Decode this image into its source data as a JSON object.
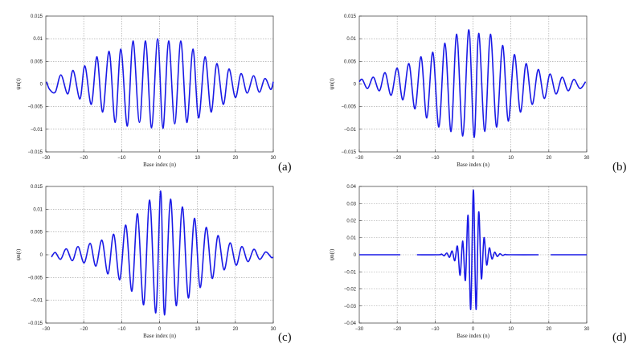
{
  "chart_data": [
    {
      "type": "line",
      "panel_label": "(a)",
      "xlabel": "Base   index   (n)",
      "ylabel": "ψn(t)",
      "xlim": [
        -30,
        30
      ],
      "ylim": [
        -0.015,
        0.015
      ],
      "xticks": [
        "−30",
        "−20",
        "−10",
        "0",
        "10",
        "20",
        "30"
      ],
      "yticks": [
        "−0.015",
        "−0.01",
        "−0.005",
        "0",
        "0.005",
        "0.01",
        "0.015"
      ],
      "grid": true,
      "series": [
        {
          "color": "#1a1ae6",
          "x": [
            -29.8,
            -29.0,
            -27.5,
            -26.0,
            -24.2,
            -22.8,
            -21.0,
            -19.7,
            -18.0,
            -16.5,
            -15.0,
            -13.3,
            -11.7,
            -10.2,
            -8.5,
            -7.0,
            -5.3,
            -3.7,
            -2.1,
            -0.5,
            0.9,
            2.4,
            4.0,
            5.6,
            7.2,
            8.8,
            10.3,
            12.0,
            13.6,
            15.1,
            16.8,
            18.3,
            20.0,
            21.5,
            23.1,
            24.8,
            26.3,
            27.8,
            29.3,
            30.0
          ],
          "y": [
            0.0005,
            -0.0012,
            -0.0018,
            0.002,
            -0.0022,
            0.003,
            -0.0033,
            0.004,
            -0.0045,
            0.006,
            -0.0062,
            0.0072,
            -0.0085,
            0.0077,
            -0.0093,
            0.0095,
            -0.0085,
            0.0095,
            -0.0097,
            0.01,
            -0.0098,
            0.0095,
            -0.0088,
            0.0095,
            -0.0085,
            0.0077,
            -0.0075,
            0.006,
            -0.0062,
            0.0045,
            -0.0045,
            0.0033,
            -0.003,
            0.0023,
            -0.002,
            0.0018,
            -0.0018,
            0.0012,
            -0.0012,
            0.0005
          ]
        }
      ]
    },
    {
      "type": "line",
      "panel_label": "(b)",
      "xlabel": "Base   index   (n)",
      "ylabel": "ψn(t)",
      "xlim": [
        -30,
        30
      ],
      "ylim": [
        -0.015,
        0.015
      ],
      "xticks": [
        "−30",
        "−20",
        "−10",
        "0",
        "10",
        "20",
        "30"
      ],
      "yticks": [
        "−0.015",
        "−0.01",
        "−0.005",
        "0",
        "0.005",
        "0.01",
        "0.015"
      ],
      "grid": true,
      "series": [
        {
          "color": "#1a1ae6",
          "x": [
            -30.0,
            -29.2,
            -27.8,
            -26.3,
            -24.7,
            -23.2,
            -21.6,
            -20.0,
            -18.5,
            -16.9,
            -15.3,
            -13.7,
            -12.2,
            -10.6,
            -9.0,
            -7.4,
            -5.8,
            -4.3,
            -2.7,
            -1.1,
            0.3,
            1.5,
            3.1,
            4.6,
            6.2,
            7.8,
            9.3,
            10.9,
            12.5,
            14.0,
            15.6,
            17.2,
            18.8,
            20.3,
            21.9,
            23.5,
            25.1,
            26.6,
            28.2,
            29.7
          ],
          "y": [
            0.0005,
            0.001,
            -0.001,
            0.0015,
            -0.0015,
            0.0025,
            -0.0025,
            0.0035,
            -0.0035,
            0.0045,
            -0.0055,
            0.006,
            -0.0075,
            0.007,
            -0.0095,
            0.009,
            -0.0105,
            0.011,
            -0.0115,
            0.012,
            -0.0118,
            0.0112,
            -0.0105,
            0.011,
            -0.0095,
            0.0085,
            -0.0082,
            0.0065,
            -0.0062,
            0.0045,
            -0.0045,
            0.0032,
            -0.0032,
            0.0022,
            -0.0022,
            0.0015,
            -0.0015,
            0.001,
            -0.001,
            0.0005
          ]
        }
      ]
    },
    {
      "type": "line",
      "panel_label": "(c)",
      "xlabel": "Base   index   (n)",
      "ylabel": "ψn(t)",
      "xlim": [
        -30,
        30
      ],
      "ylim": [
        -0.015,
        0.015
      ],
      "xticks": [
        "−30",
        "−20",
        "−10",
        "0",
        "10",
        "20",
        "30"
      ],
      "yticks": [
        "−0.015",
        "−0.01",
        "−0.005",
        "0",
        "0.005",
        "0.01",
        "0.015"
      ],
      "grid": true,
      "series": [
        {
          "color": "#1a1ae6",
          "x": [
            -28.5,
            -27.5,
            -26.1,
            -24.6,
            -23.0,
            -21.5,
            -19.9,
            -18.3,
            -16.8,
            -15.2,
            -13.6,
            -12.1,
            -10.5,
            -8.9,
            -7.3,
            -5.8,
            -4.2,
            -2.6,
            -1.0,
            0.3,
            1.3,
            2.9,
            4.4,
            6.0,
            7.6,
            9.2,
            10.7,
            12.3,
            13.9,
            15.4,
            17.0,
            18.6,
            20.2,
            21.7,
            23.3,
            24.9,
            26.4,
            28.0,
            29.5,
            30.0
          ],
          "y": [
            -0.0005,
            0.0005,
            -0.001,
            0.0013,
            -0.0013,
            0.0018,
            -0.0018,
            0.0025,
            -0.0025,
            0.0032,
            -0.0042,
            0.0045,
            -0.0055,
            0.0065,
            -0.008,
            0.009,
            -0.011,
            0.012,
            -0.0128,
            0.014,
            -0.0132,
            0.0122,
            -0.0112,
            0.0105,
            -0.0095,
            0.008,
            -0.0072,
            0.006,
            -0.0052,
            0.0042,
            -0.0033,
            0.0026,
            -0.0023,
            0.0018,
            -0.0015,
            0.0012,
            -0.001,
            0.0006,
            -0.0006,
            -0.0005
          ]
        }
      ]
    },
    {
      "type": "line",
      "panel_label": "(d)",
      "xlabel": "Base   index   (n)",
      "ylabel": "ψn(t)",
      "xlim": [
        -30,
        30
      ],
      "ylim": [
        -0.04,
        0.04
      ],
      "xticks": [
        "−30",
        "−20",
        "−10",
        "0",
        "10",
        "20",
        "30"
      ],
      "yticks": [
        "−0.04",
        "−0.03",
        "−0.02",
        "−0.01",
        "0",
        "0.01",
        "0.02",
        "0.03",
        "0.04"
      ],
      "grid": true,
      "series": [
        {
          "color": "#1a1ae6",
          "segments": [
            {
              "x": [
                -30,
                -19.2
              ],
              "y": [
                0,
                0
              ]
            },
            {
              "x": [
                -14.8,
                -9.0,
                -8.3,
                -7.6,
                -6.9,
                -6.2,
                -5.5,
                -4.8,
                -4.1,
                -3.4,
                -2.7,
                -2.0,
                -1.3,
                -0.6,
                0.1,
                0.8,
                1.5,
                2.2,
                2.9,
                3.6,
                4.3,
                5.0,
                5.7,
                6.4,
                7.1,
                7.8,
                8.5,
                9.5,
                17.3
              ],
              "y": [
                0,
                0,
                0.0004,
                -0.0006,
                0.001,
                -0.0015,
                0.0022,
                -0.0035,
                0.005,
                -0.012,
                0.008,
                -0.015,
                0.023,
                -0.032,
                0.038,
                -0.032,
                0.025,
                -0.014,
                0.01,
                -0.006,
                0.004,
                -0.0025,
                0.0015,
                -0.001,
                0.0006,
                -0.0004,
                0.0002,
                0,
                0
              ]
            },
            {
              "x": [
                20.5,
                30
              ],
              "y": [
                0,
                0
              ]
            }
          ]
        }
      ]
    }
  ]
}
